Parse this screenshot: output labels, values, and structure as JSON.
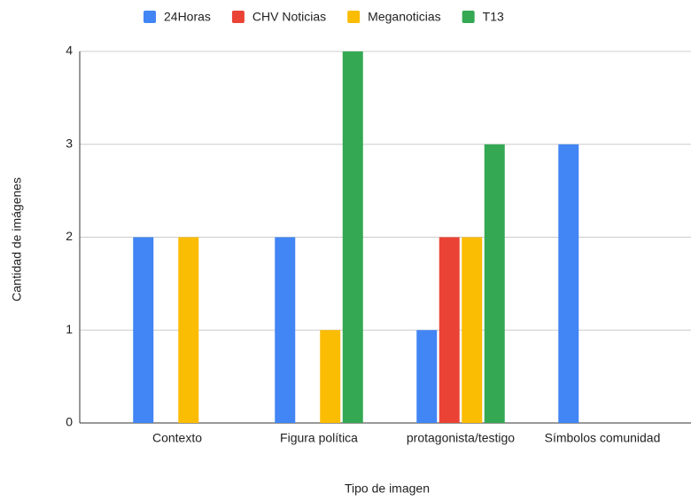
{
  "chart_data": {
    "type": "bar",
    "categories": [
      "Contexto",
      "Figura política",
      "protagonista/testigo",
      "Símbolos comunidad"
    ],
    "series": [
      {
        "name": "24Horas",
        "color": "#4285f4",
        "values": [
          2,
          2,
          1,
          3
        ]
      },
      {
        "name": "CHV Noticias",
        "color": "#ea4335",
        "values": [
          0,
          0,
          2,
          0
        ]
      },
      {
        "name": "Meganoticias",
        "color": "#fbbc04",
        "values": [
          2,
          1,
          2,
          0
        ]
      },
      {
        "name": "T13",
        "color": "#34a853",
        "values": [
          0,
          4,
          3,
          0
        ]
      }
    ],
    "x_label": "Tipo de imagen",
    "y_label": "Cantidad de imágenes",
    "ylim": [
      0,
      4
    ],
    "yticks": [
      0,
      1,
      2,
      3,
      4
    ],
    "grid": true,
    "legend": "top"
  }
}
